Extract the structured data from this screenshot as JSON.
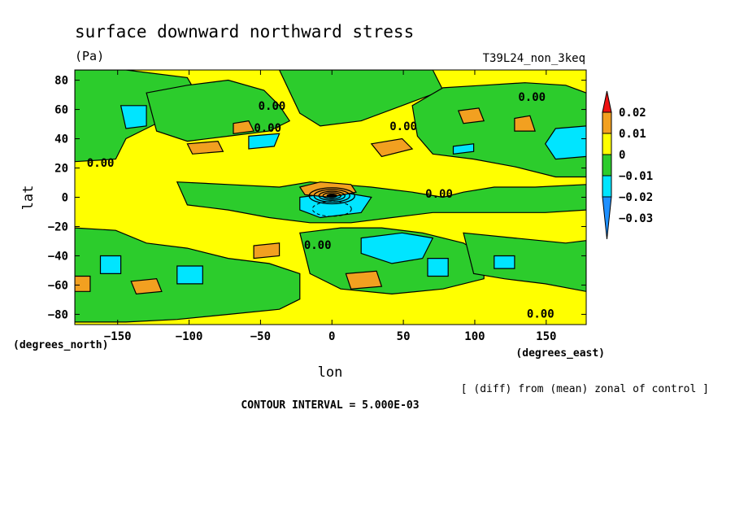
{
  "chart_data": {
    "type": "heatmap",
    "title": "surface downward northward stress",
    "units": "(Pa)",
    "experiment": "T39L24_non_3keq",
    "xlabel": "lon",
    "ylabel": "lat",
    "x_units": "(degrees_east)",
    "y_units": "(degrees_north)",
    "note": "[ (diff) from (mean) zonal of control ]",
    "contour_interval": "CONTOUR INTERVAL = 5.000E-03",
    "xlim": [
      -180,
      178
    ],
    "ylim": [
      -87,
      87
    ],
    "x_ticks": [
      -150,
      -100,
      -50,
      0,
      50,
      100,
      150
    ],
    "x_tick_labels": [
      "−150",
      "−100",
      "−50",
      "0",
      "50",
      "100",
      "150"
    ],
    "y_ticks": [
      80,
      60,
      40,
      20,
      0,
      -20,
      -40,
      -60,
      -80
    ],
    "y_tick_labels": [
      "80",
      "60",
      "40",
      "20",
      "0",
      "−20",
      "−40",
      "−60",
      "−80"
    ],
    "colorbar": {
      "levels": [
        0.02,
        0.01,
        0,
        -0.01,
        -0.02,
        -0.03
      ],
      "level_labels": [
        "0.02",
        "0.01",
        "0",
        "−0.01",
        "−0.02",
        "−0.03"
      ],
      "colors": [
        "#ee1111",
        "#f2a020",
        "#ffff00",
        "#2ccc2c",
        "#00e5ff",
        "#1e90ff"
      ]
    },
    "contour_labels": [
      {
        "text": "0.00",
        "lon": -162,
        "lat": 23
      },
      {
        "text": "0.00",
        "lon": -42,
        "lat": 62
      },
      {
        "text": "0.00",
        "lon": -45,
        "lat": 47
      },
      {
        "text": "0.00",
        "lon": 50,
        "lat": 48
      },
      {
        "text": "0.00",
        "lon": 140,
        "lat": 68
      },
      {
        "text": "0.00",
        "lon": 75,
        "lat": 2
      },
      {
        "text": "0.00",
        "lon": -10,
        "lat": -33
      },
      {
        "text": "0.00",
        "lon": 146,
        "lat": -80
      }
    ]
  }
}
